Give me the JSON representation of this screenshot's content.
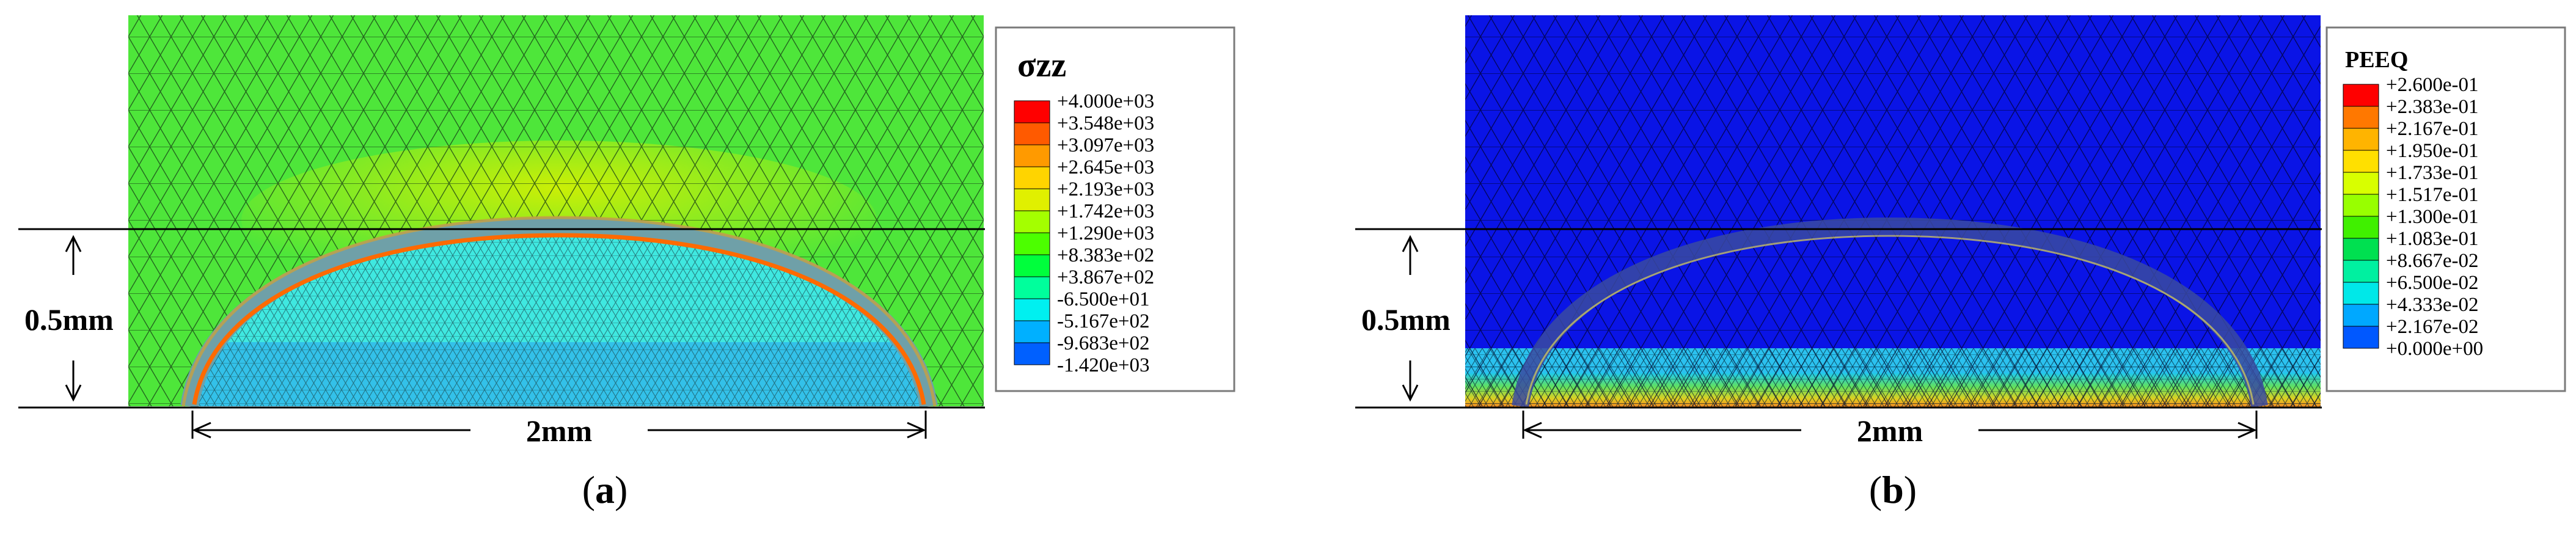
{
  "panel_a": {
    "caption": "a",
    "legend_title": "σzz",
    "legend_values": [
      "+4.000e+03",
      "+3.548e+03",
      "+3.097e+03",
      "+2.645e+03",
      "+2.193e+03",
      "+1.742e+03",
      "+1.290e+03",
      "+8.383e+02",
      "+3.867e+02",
      "-6.500e+01",
      "-5.167e+02",
      "-9.683e+02",
      "-1.420e+03"
    ],
    "legend_colors": [
      "#ff0000",
      "#ff5a00",
      "#ff9a00",
      "#ffd400",
      "#e0f000",
      "#a4ff00",
      "#4cff00",
      "#00ff3c",
      "#00ff9c",
      "#00f0f0",
      "#00b0ff",
      "#0060ff",
      "#0000ff"
    ],
    "height_label": "0.5mm",
    "width_label": "2mm",
    "field_color": "#4ee63a",
    "inner_color": "#3fe8e0"
  },
  "panel_b": {
    "caption": "b",
    "legend_title": "PEEQ",
    "legend_values": [
      "+2.600e-01",
      "+2.383e-01",
      "+2.167e-01",
      "+1.950e-01",
      "+1.733e-01",
      "+1.517e-01",
      "+1.300e-01",
      "+1.083e-01",
      "+8.667e-02",
      "+6.500e-02",
      "+4.333e-02",
      "+2.167e-02",
      "+0.000e+00"
    ],
    "legend_colors": [
      "#ff0000",
      "#ff7800",
      "#ffb400",
      "#ffe000",
      "#d8ff00",
      "#98ff00",
      "#40f000",
      "#00e050",
      "#00f0a0",
      "#00e8e8",
      "#00a8ff",
      "#0058ff",
      "#0000ff"
    ],
    "height_label": "0.5mm",
    "width_label": "2mm",
    "field_color": "#0a14e6",
    "band_color": "#2fd4f0"
  }
}
